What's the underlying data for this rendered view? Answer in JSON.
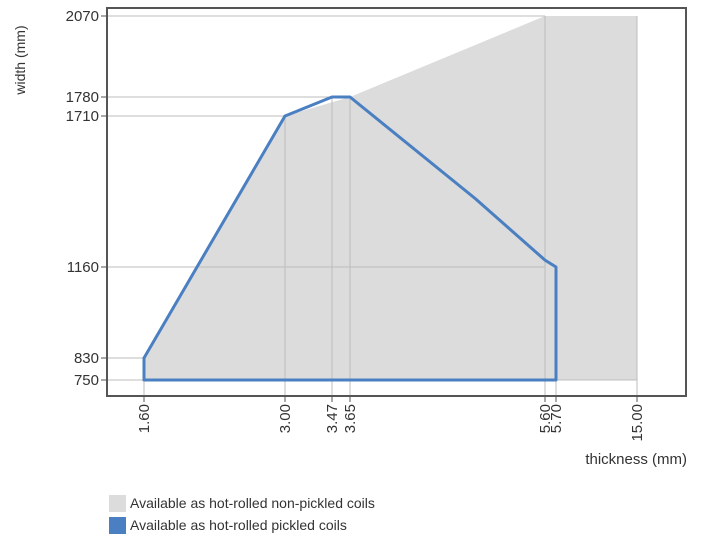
{
  "chart_data": {
    "type": "area",
    "xlabel": "thickness (mm)",
    "ylabel": "width (mm)",
    "x_ticks": [
      "1.60",
      "3.00",
      "3.47",
      "3.65",
      "5.60",
      "5.70",
      "15.00"
    ],
    "y_ticks": [
      "750",
      "830",
      "1160",
      "1710",
      "1780",
      "2070"
    ],
    "series": [
      {
        "name": "Available as hot-rolled non-pickled coils",
        "color": "#dcdcdc",
        "points": [
          {
            "x": "1.60",
            "y": 750
          },
          {
            "x": "1.60",
            "y": 830
          },
          {
            "x": "3.00",
            "y": 1710
          },
          {
            "x": "3.65",
            "y": 1780
          },
          {
            "x": "5.60",
            "y": 2070
          },
          {
            "x": "15.00",
            "y": 2070
          },
          {
            "x": "15.00",
            "y": 750
          }
        ]
      },
      {
        "name": "Available as hot-rolled pickled coils",
        "color": "#4a7fc1",
        "points": [
          {
            "x": "1.60",
            "y": 750
          },
          {
            "x": "1.60",
            "y": 830
          },
          {
            "x": "3.00",
            "y": 1710
          },
          {
            "x": "3.47",
            "y": 1780
          },
          {
            "x": "3.65",
            "y": 1780
          },
          {
            "x": 4.9,
            "y": 1410
          },
          {
            "x": "5.60",
            "y": 1185
          },
          {
            "x": "5.70",
            "y": 1160
          },
          {
            "x": "5.70",
            "y": 750
          }
        ]
      }
    ]
  }
}
